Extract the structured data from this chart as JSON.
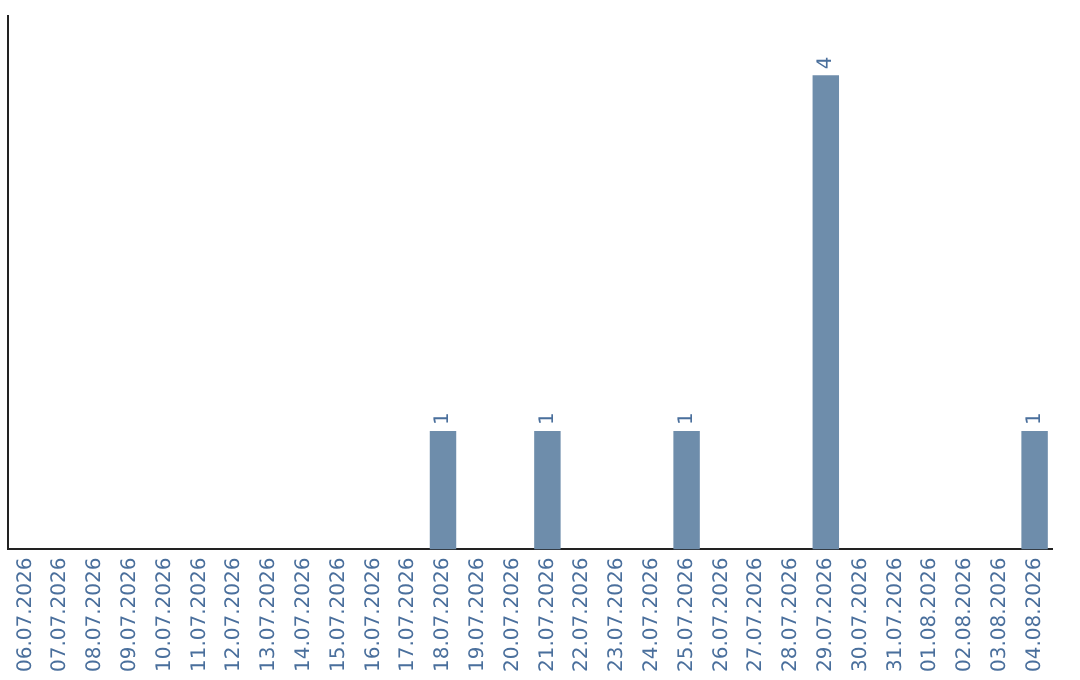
{
  "chart_data": {
    "type": "bar",
    "categories": [
      "06.07.2026",
      "07.07.2026",
      "08.07.2026",
      "09.07.2026",
      "10.07.2026",
      "11.07.2026",
      "12.07.2026",
      "13.07.2026",
      "14.07.2026",
      "15.07.2026",
      "16.07.2026",
      "17.07.2026",
      "18.07.2026",
      "19.07.2026",
      "20.07.2026",
      "21.07.2026",
      "22.07.2026",
      "23.07.2026",
      "24.07.2026",
      "25.07.2026",
      "26.07.2026",
      "27.07.2026",
      "28.07.2026",
      "29.07.2026",
      "30.07.2026",
      "31.07.2026",
      "01.08.2026",
      "02.08.2026",
      "03.08.2026",
      "04.08.2026"
    ],
    "values": [
      null,
      null,
      null,
      null,
      null,
      null,
      null,
      null,
      null,
      null,
      null,
      null,
      1,
      null,
      null,
      1,
      null,
      null,
      null,
      1,
      null,
      null,
      null,
      4,
      null,
      null,
      null,
      null,
      null,
      1
    ],
    "value_labels": [
      null,
      null,
      null,
      null,
      null,
      null,
      null,
      null,
      null,
      null,
      null,
      null,
      "1",
      null,
      null,
      "1",
      null,
      null,
      null,
      "1",
      null,
      null,
      null,
      "4",
      null,
      null,
      null,
      null,
      null,
      "1"
    ],
    "color": "#6e8dab",
    "legend": false,
    "grid": false
  }
}
